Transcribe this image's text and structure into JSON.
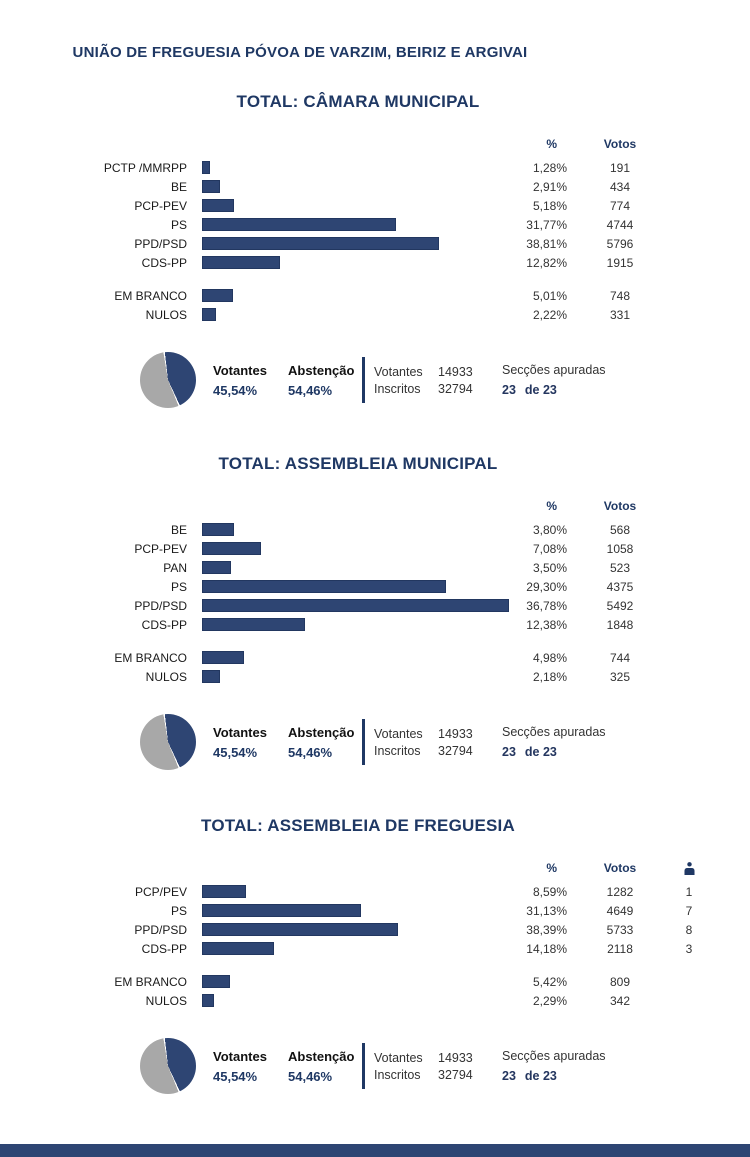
{
  "page": {
    "title": "UNIÃO DE FREGUESIA PÓVOA DE VARZIM, BEIRIZ E ARGIVAI"
  },
  "colors": {
    "bar_navy": "#2e4573",
    "title_navy": "#1f3864",
    "pie_gray": "#a8a8a8"
  },
  "turnout": {
    "votantes_label": "Votantes",
    "votantes_pct": "45,54%",
    "abstencao_label": "Abstenção",
    "abstencao_pct": "54,46%",
    "votantes_count_label": "Votantes",
    "votantes_count": "14933",
    "inscritos_label": "Inscritos",
    "inscritos_count": "32794",
    "seccoes_label": "Secções apuradas",
    "seccoes_done": "23",
    "seccoes_of": "de 23"
  },
  "chart_data": [
    {
      "type": "bar",
      "orientation": "horizontal",
      "title": "TOTAL: CÂMARA MUNICIPAL",
      "columns": [
        "%",
        "Votos"
      ],
      "categories": [
        "PCTP /MMRPP",
        "BE",
        "PCP-PEV",
        "PS",
        "PPD/PSD",
        "CDS-PP"
      ],
      "values": [
        1.28,
        2.91,
        5.18,
        31.77,
        38.81,
        12.82
      ],
      "value_labels": [
        "1,28%",
        "2,91%",
        "5,18%",
        "31,77%",
        "38,81%",
        "12,82%"
      ],
      "votes": [
        "191",
        "434",
        "774",
        "4744",
        "5796",
        "1915"
      ],
      "blank_null": {
        "categories": [
          "EM BRANCO",
          "NULOS"
        ],
        "values": [
          5.01,
          2.22
        ],
        "value_labels": [
          "5,01%",
          "2,22%"
        ],
        "votes": [
          "748",
          "331"
        ]
      },
      "xlim": [
        0,
        51
      ]
    },
    {
      "type": "bar",
      "orientation": "horizontal",
      "title": "TOTAL: ASSEMBLEIA MUNICIPAL",
      "columns": [
        "%",
        "Votos"
      ],
      "categories": [
        "BE",
        "PCP-PEV",
        "PAN",
        "PS",
        "PPD/PSD",
        "CDS-PP"
      ],
      "values": [
        3.8,
        7.08,
        3.5,
        29.3,
        36.78,
        12.38
      ],
      "value_labels": [
        "3,80%",
        "7,08%",
        "3,50%",
        "29,30%",
        "36,78%",
        "12,38%"
      ],
      "votes": [
        "568",
        "1058",
        "523",
        "4375",
        "5492",
        "1848"
      ],
      "blank_null": {
        "categories": [
          "EM BRANCO",
          "NULOS"
        ],
        "values": [
          4.98,
          2.18
        ],
        "value_labels": [
          "4,98%",
          "2,18%"
        ],
        "votes": [
          "744",
          "325"
        ]
      },
      "xlim": [
        0,
        37.3
      ]
    },
    {
      "type": "bar",
      "orientation": "horizontal",
      "title": "TOTAL: ASSEMBLEIA DE FREGUESIA",
      "columns": [
        "%",
        "Votos"
      ],
      "categories": [
        "PCP/PEV",
        "PS",
        "PPD/PSD",
        "CDS-PP"
      ],
      "values": [
        8.59,
        31.13,
        38.39,
        14.18
      ],
      "value_labels": [
        "8,59%",
        "31,13%",
        "38,39%",
        "14,18%"
      ],
      "votes": [
        "1282",
        "4649",
        "5733",
        "2118"
      ],
      "mandates": [
        "1",
        "7",
        "8",
        "3"
      ],
      "blank_null": {
        "categories": [
          "EM BRANCO",
          "NULOS"
        ],
        "values": [
          5.42,
          2.29
        ],
        "value_labels": [
          "5,42%",
          "2,29%"
        ],
        "votes": [
          "809",
          "342"
        ]
      },
      "xlim": [
        0,
        61
      ]
    },
    {
      "type": "pie",
      "labels": [
        "Votantes",
        "Abstenção"
      ],
      "values": [
        45.54,
        54.46
      ],
      "value_labels": [
        "45,54%",
        "54,46%"
      ],
      "colors": [
        "#2e4573",
        "#a8a8a8"
      ],
      "start_angle_deg": -8,
      "legend_position": "right"
    }
  ]
}
